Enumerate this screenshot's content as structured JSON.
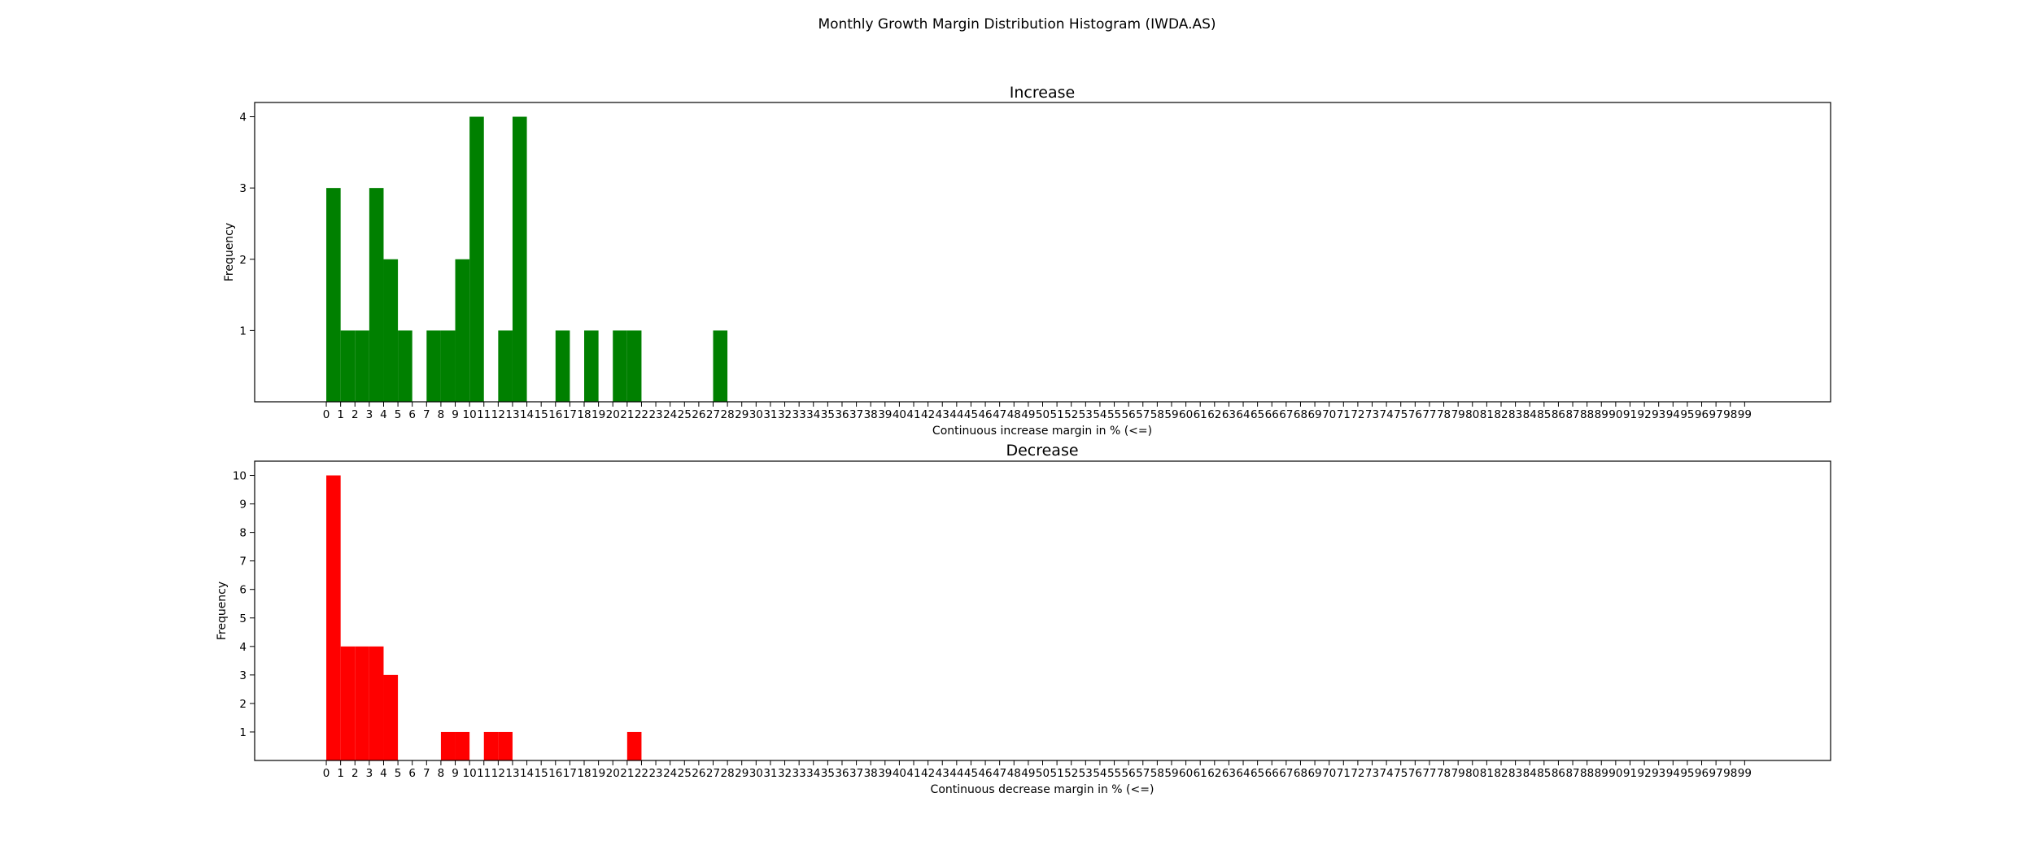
{
  "figure": {
    "title": "Monthly Growth Margin Distribution Histogram (IWDA.AS)"
  },
  "chart_data": [
    {
      "type": "bar",
      "title": "Increase",
      "xlabel": "Continuous increase margin in % (<=)",
      "ylabel": "Frequency",
      "color": "#008000",
      "x_ticks": [
        0,
        1,
        2,
        3,
        4,
        5,
        6,
        7,
        8,
        9,
        10,
        11,
        12,
        13,
        14,
        15,
        16,
        17,
        18,
        19,
        20,
        21,
        22,
        23,
        24,
        25,
        26,
        27,
        28,
        29,
        30,
        31,
        32,
        33,
        34,
        35,
        36,
        37,
        38,
        39,
        40,
        41,
        42,
        43,
        44,
        45,
        46,
        47,
        48,
        49,
        50,
        51,
        52,
        53,
        54,
        55,
        56,
        57,
        58,
        59,
        60,
        61,
        62,
        63,
        64,
        65,
        66,
        67,
        68,
        69,
        70,
        71,
        72,
        73,
        74,
        75,
        76,
        77,
        78,
        79,
        80,
        81,
        82,
        83,
        84,
        85,
        86,
        87,
        88,
        89,
        90,
        91,
        92,
        93,
        94,
        95,
        96,
        97,
        98,
        99
      ],
      "y_ticks": [
        1,
        2,
        3,
        4
      ],
      "xlim": [
        -5,
        105
      ],
      "ylim": [
        0,
        4.2
      ],
      "bins": [
        {
          "start": 0,
          "end": 1,
          "count": 3
        },
        {
          "start": 1,
          "end": 2,
          "count": 1
        },
        {
          "start": 2,
          "end": 3,
          "count": 1
        },
        {
          "start": 3,
          "end": 4,
          "count": 3
        },
        {
          "start": 4,
          "end": 5,
          "count": 2
        },
        {
          "start": 5,
          "end": 6,
          "count": 1
        },
        {
          "start": 7,
          "end": 8,
          "count": 1
        },
        {
          "start": 8,
          "end": 9,
          "count": 1
        },
        {
          "start": 9,
          "end": 10,
          "count": 2
        },
        {
          "start": 10,
          "end": 11,
          "count": 4
        },
        {
          "start": 12,
          "end": 13,
          "count": 1
        },
        {
          "start": 13,
          "end": 14,
          "count": 4
        },
        {
          "start": 16,
          "end": 17,
          "count": 1
        },
        {
          "start": 18,
          "end": 19,
          "count": 1
        },
        {
          "start": 20,
          "end": 21,
          "count": 1
        },
        {
          "start": 21,
          "end": 22,
          "count": 1
        },
        {
          "start": 27,
          "end": 28,
          "count": 1
        }
      ]
    },
    {
      "type": "bar",
      "title": "Decrease",
      "xlabel": "Continuous decrease margin in % (<=)",
      "ylabel": "Frequency",
      "color": "#ff0000",
      "x_ticks": [
        0,
        1,
        2,
        3,
        4,
        5,
        6,
        7,
        8,
        9,
        10,
        11,
        12,
        13,
        14,
        15,
        16,
        17,
        18,
        19,
        20,
        21,
        22,
        23,
        24,
        25,
        26,
        27,
        28,
        29,
        30,
        31,
        32,
        33,
        34,
        35,
        36,
        37,
        38,
        39,
        40,
        41,
        42,
        43,
        44,
        45,
        46,
        47,
        48,
        49,
        50,
        51,
        52,
        53,
        54,
        55,
        56,
        57,
        58,
        59,
        60,
        61,
        62,
        63,
        64,
        65,
        66,
        67,
        68,
        69,
        70,
        71,
        72,
        73,
        74,
        75,
        76,
        77,
        78,
        79,
        80,
        81,
        82,
        83,
        84,
        85,
        86,
        87,
        88,
        89,
        90,
        91,
        92,
        93,
        94,
        95,
        96,
        97,
        98,
        99
      ],
      "y_ticks": [
        1,
        2,
        3,
        4,
        5,
        6,
        7,
        8,
        9,
        10
      ],
      "xlim": [
        -5,
        105
      ],
      "ylim": [
        0,
        10.5
      ],
      "bins": [
        {
          "start": 0,
          "end": 1,
          "count": 10
        },
        {
          "start": 1,
          "end": 2,
          "count": 4
        },
        {
          "start": 2,
          "end": 3,
          "count": 4
        },
        {
          "start": 3,
          "end": 4,
          "count": 4
        },
        {
          "start": 4,
          "end": 5,
          "count": 3
        },
        {
          "start": 8,
          "end": 9,
          "count": 1
        },
        {
          "start": 9,
          "end": 10,
          "count": 1
        },
        {
          "start": 11,
          "end": 12,
          "count": 1
        },
        {
          "start": 12,
          "end": 13,
          "count": 1
        },
        {
          "start": 21,
          "end": 22,
          "count": 1
        }
      ]
    }
  ]
}
